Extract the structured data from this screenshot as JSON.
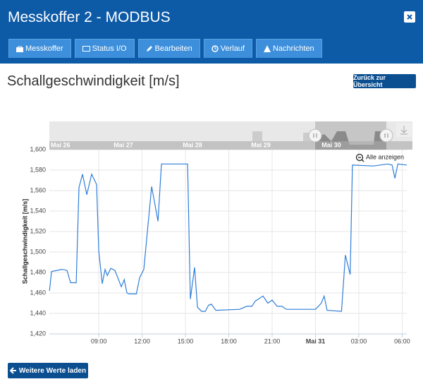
{
  "header": {
    "title": "Messkoffer 2 - MODBUS"
  },
  "tabs": [
    "Messkoffer",
    "Status I/O",
    "Bearbeiten",
    "Verlauf",
    "Nachrichten"
  ],
  "heading": "Schallgeschwindigkeit [m/s]",
  "back_button": "Zurück zur Übersicht",
  "load_button": "Weitere Werte laden",
  "chart_data": {
    "type": "line",
    "y_label": "Schallgeschwindigkeit [m/s]",
    "reset_zoom": "Alle anzeigen",
    "navigator_labels": [
      "Mai 26",
      "Mai 27",
      "Mai 28",
      "Mai 29",
      "Mai 30"
    ],
    "color": "#2f7ed8",
    "grid": true,
    "x": [
      5.59,
      5.73,
      6.46,
      6.8,
      7.05,
      7.44,
      7.63,
      7.88,
      8.17,
      8.51,
      8.85,
      9.0,
      9.24,
      9.44,
      9.59,
      9.83,
      10.12,
      10.56,
      10.76,
      10.95,
      11.1,
      11.6,
      11.83,
      12.12,
      12.66,
      13.1,
      13.34,
      15.15,
      15.34,
      15.63,
      15.83,
      16.12,
      16.37,
      16.6,
      16.8,
      17.1,
      18.76,
      19.24,
      19.6,
      19.83,
      20.37,
      20.7,
      21.0,
      21.34,
      21.68,
      21.98,
      24.0,
      24.4,
      24.6,
      24.8,
      25.8,
      26.07,
      26.4,
      26.56,
      28.0,
      29.0,
      29.3,
      29.5,
      29.7,
      30.32
    ],
    "values": [
      1462,
      1481,
      1483,
      1482,
      1470,
      1470,
      1563,
      1576,
      1556,
      1576,
      1566,
      1501,
      1469,
      1483,
      1477,
      1484,
      1482,
      1466,
      1473,
      1460,
      1459,
      1459,
      1475,
      1483,
      1564,
      1530,
      1586,
      1586,
      1454,
      1485,
      1446,
      1442,
      1442,
      1448,
      1449,
      1443,
      1444,
      1447,
      1447,
      1452,
      1457,
      1450,
      1453,
      1447,
      1447,
      1444,
      1444,
      1450,
      1457,
      1443,
      1442,
      1497,
      1478,
      1585,
      1584,
      1586,
      1585,
      1572,
      1586,
      1585
    ],
    "xlim": [
      5.58,
      30.32
    ],
    "xticks": [
      {
        "value": 9,
        "label": "09:00"
      },
      {
        "value": 12,
        "label": "12:00"
      },
      {
        "value": 15,
        "label": "15:00"
      },
      {
        "value": 18,
        "label": "18:00"
      },
      {
        "value": 21,
        "label": "21:00"
      },
      {
        "value": 24,
        "label": "Mai 31"
      },
      {
        "value": 27,
        "label": "03:00"
      },
      {
        "value": 30,
        "label": "06:00"
      }
    ],
    "ylim": [
      1420,
      1600
    ],
    "yticks": [
      {
        "value": 1420,
        "label": "1,420"
      },
      {
        "value": 1440,
        "label": "1,440"
      },
      {
        "value": 1460,
        "label": "1,460"
      },
      {
        "value": 1480,
        "label": "1,480"
      },
      {
        "value": 1500,
        "label": "1,500"
      },
      {
        "value": 1520,
        "label": "1,520"
      },
      {
        "value": 1540,
        "label": "1,540"
      },
      {
        "value": 1560,
        "label": "1,560"
      },
      {
        "value": 1580,
        "label": "1,580"
      },
      {
        "value": 1600,
        "label": "1,600"
      }
    ]
  }
}
